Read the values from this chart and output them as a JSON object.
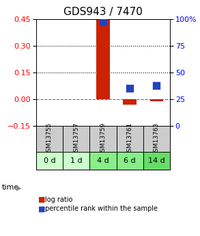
{
  "title": "GDS943 / 7470",
  "samples": [
    "GSM13755",
    "GSM13757",
    "GSM13759",
    "GSM13761",
    "GSM13763"
  ],
  "time_labels": [
    "0 d",
    "1 d",
    "4 d",
    "6 d",
    "14 d"
  ],
  "log_ratio": [
    null,
    null,
    0.45,
    -0.03,
    -0.01
  ],
  "percentile_rank": [
    null,
    null,
    97,
    35,
    38
  ],
  "ylim_left": [
    -0.15,
    0.45
  ],
  "ylim_right": [
    0,
    100
  ],
  "yticks_left": [
    -0.15,
    0,
    0.15,
    0.3,
    0.45
  ],
  "yticks_right": [
    0,
    25,
    50,
    75,
    100
  ],
  "hlines": [
    0.15,
    0.3
  ],
  "zero_line": 0,
  "bar_color": "#cc2200",
  "dot_color": "#2244bb",
  "bar_width": 0.5,
  "dot_size": 55,
  "zero_line_color": "#cc4444",
  "sample_bg_color": "#cccccc",
  "time_bg_colors": [
    "#ccffcc",
    "#ccffcc",
    "#88ee88",
    "#88ee88",
    "#66dd66"
  ],
  "legend_log_color": "#cc2200",
  "legend_pct_color": "#2244bb",
  "title_fontsize": 11,
  "tick_fontsize": 8,
  "label_fontsize": 8
}
